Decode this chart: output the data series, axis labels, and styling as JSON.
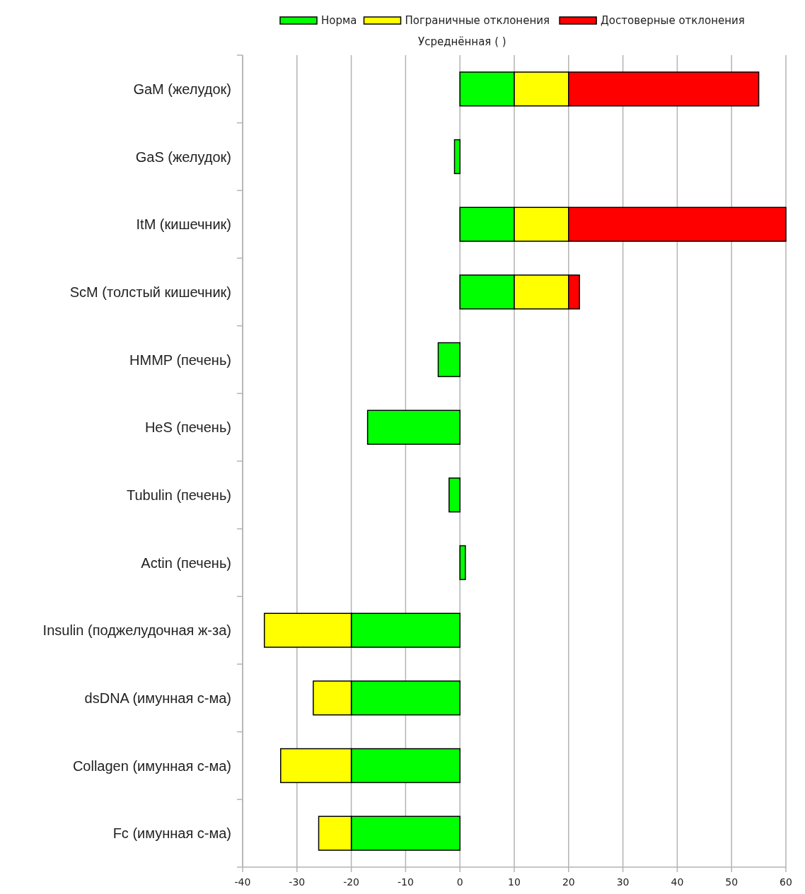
{
  "chart_data": {
    "type": "bar",
    "orientation": "horizontal",
    "stacked": true,
    "title": "Усреднённая ( )",
    "categories": [
      "GaM (желудок)",
      "GaS (желудок)",
      "ItM (кишечник)",
      "ScM (толстый кишечник)",
      "HMMP (печень)",
      "HeS (печень)",
      "Tubulin (печень)",
      "Actin (печень)",
      "Insulin (поджелудочная ж-за)",
      "dsDNA (имунная с-ма)",
      "Collagen (имунная с-ма)",
      "Fc (имунная с-ма)"
    ],
    "series": [
      {
        "name": "Норма",
        "color": "#00ff00",
        "values": [
          10,
          -1,
          10,
          10,
          -4,
          -17,
          -2,
          1,
          -20,
          -20,
          -20,
          -20
        ]
      },
      {
        "name": "Пограничные отклонения",
        "color": "#ffff00",
        "values": [
          10,
          null,
          10,
          10,
          null,
          null,
          null,
          null,
          -16,
          -7,
          -13,
          -6
        ]
      },
      {
        "name": "Достоверные отклонения",
        "color": "#ff0000",
        "values": [
          35,
          null,
          40,
          2,
          null,
          null,
          null,
          null,
          null,
          null,
          null,
          null
        ]
      }
    ],
    "xlim": [
      -40,
      60
    ],
    "xticks": [
      -40,
      -30,
      -20,
      -10,
      0,
      10,
      20,
      30,
      40,
      50,
      60
    ],
    "grid": "x",
    "legend": "top"
  }
}
